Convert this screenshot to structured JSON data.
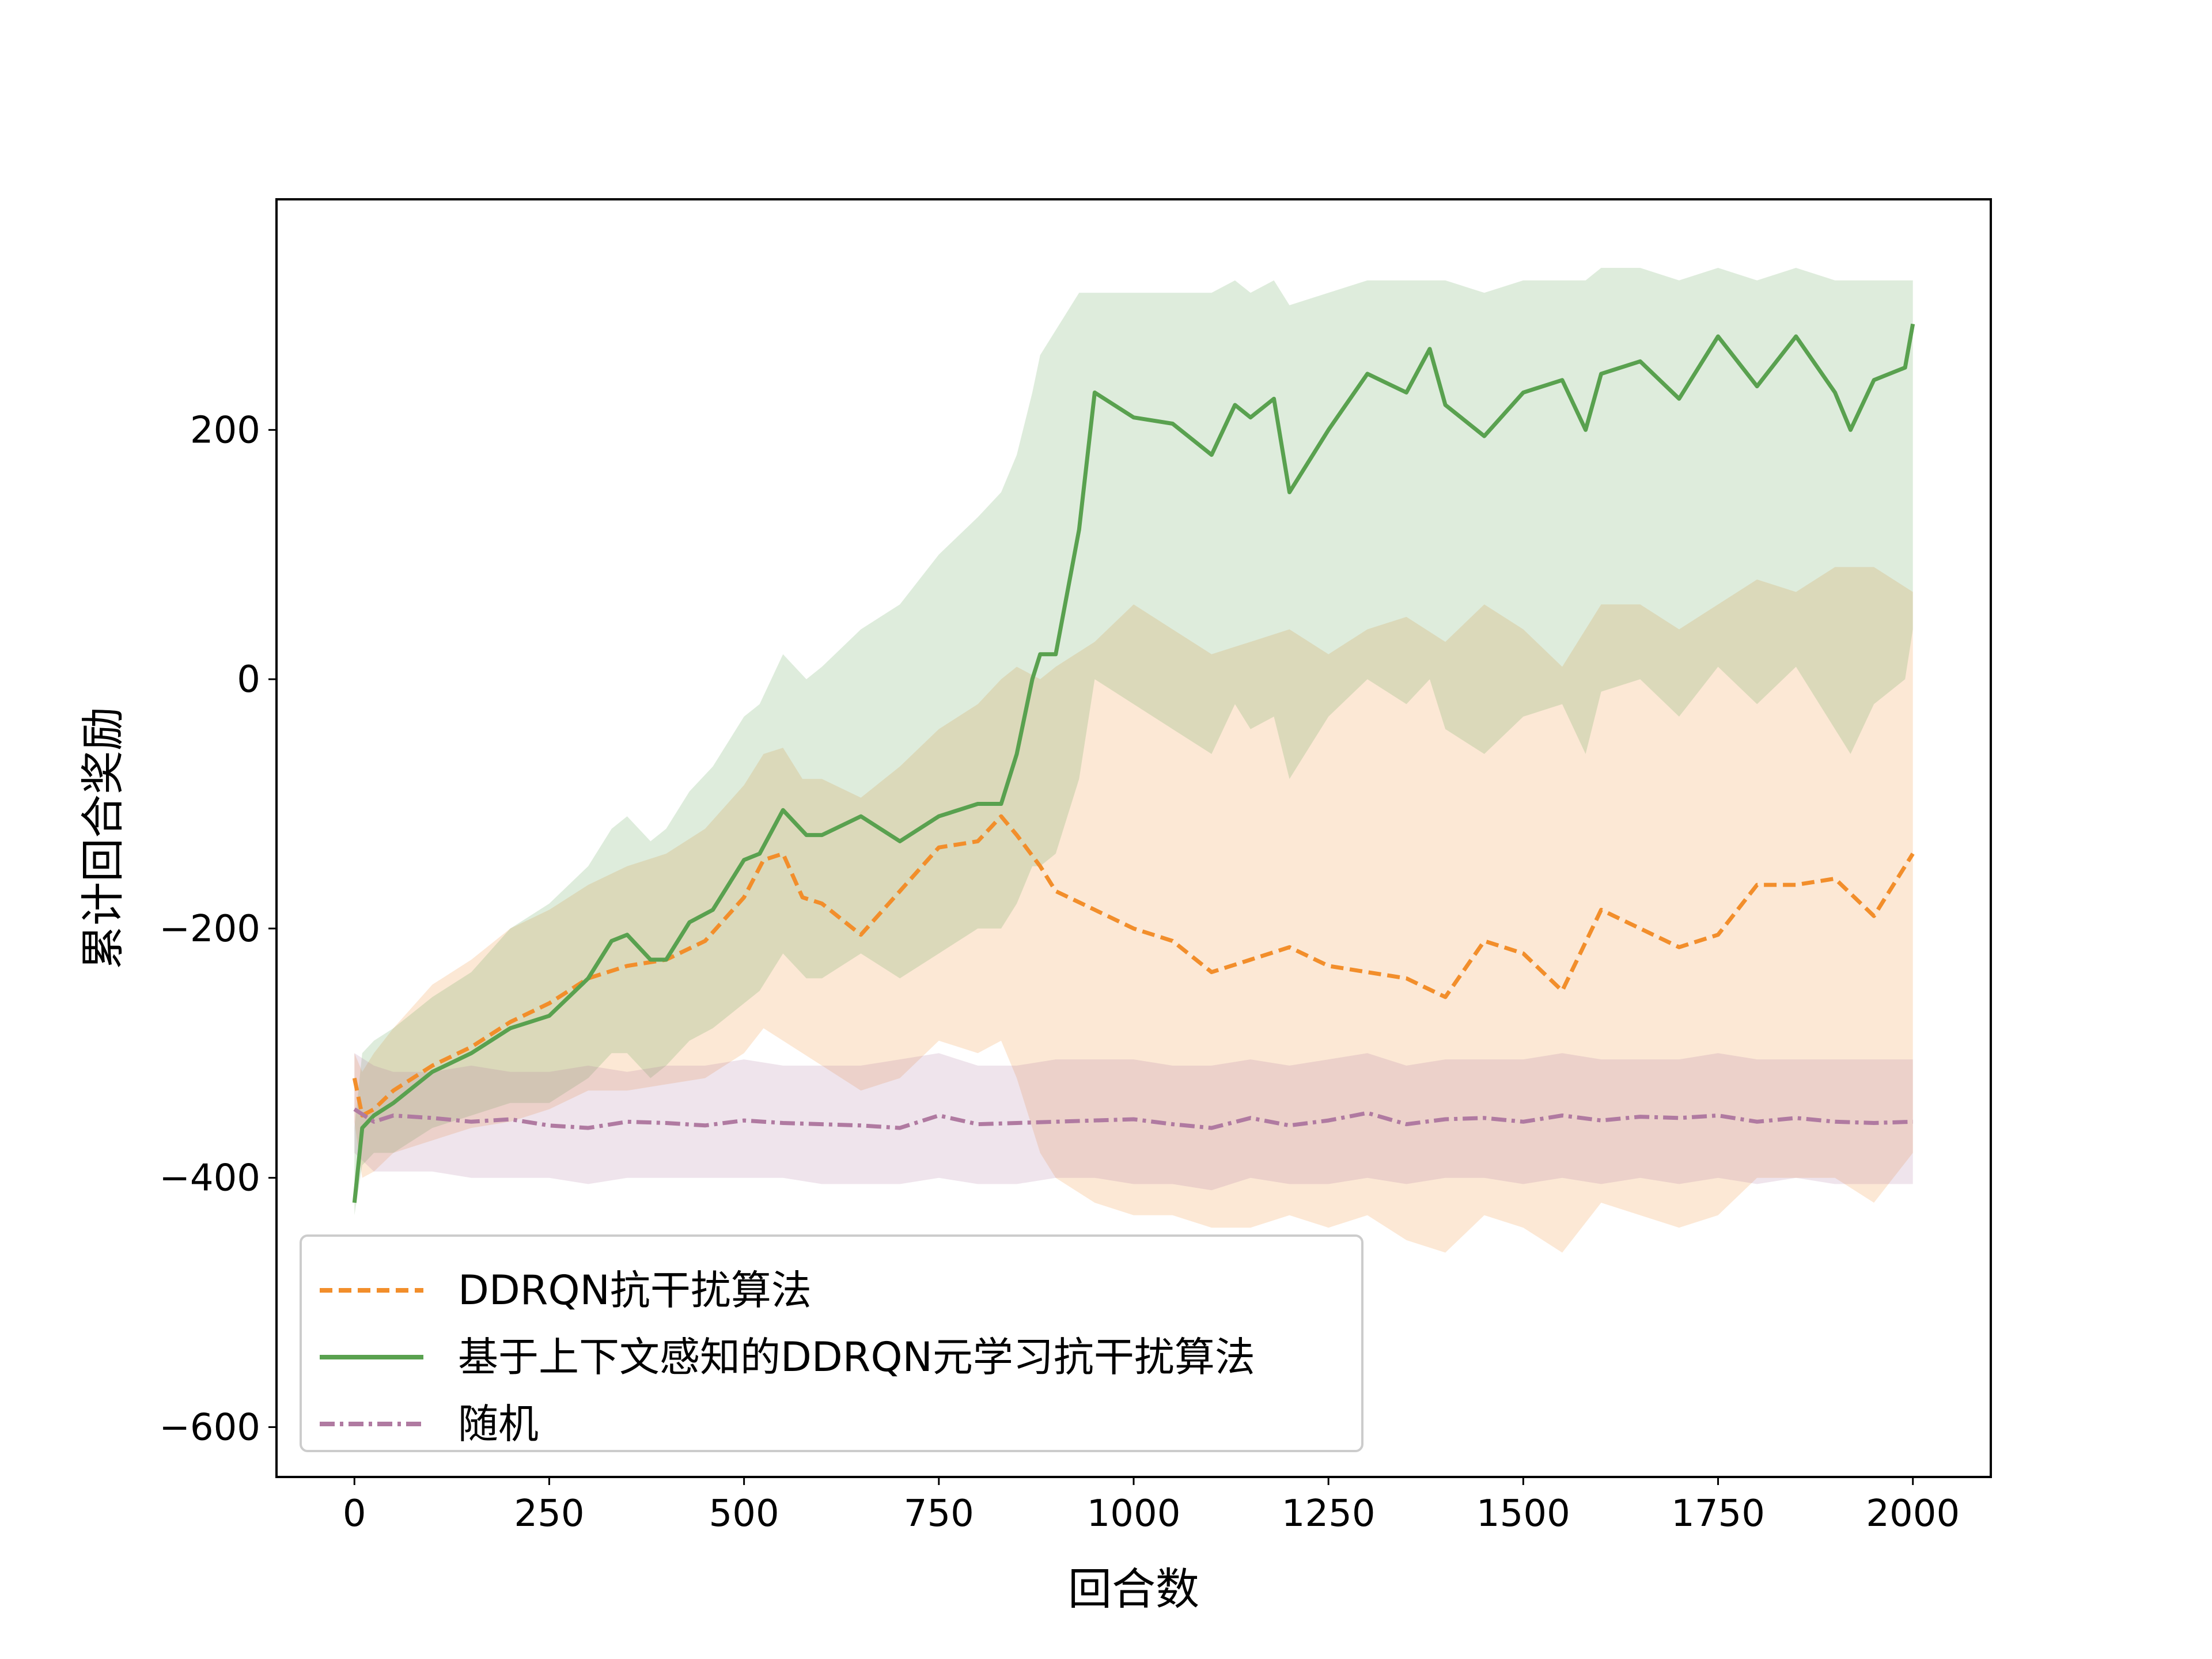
{
  "chart_data": {
    "type": "line",
    "title": "",
    "xlabel": "回合数",
    "ylabel": "累计回合奖励",
    "xlim": [
      -100,
      2100
    ],
    "ylim": [
      -640,
      385
    ],
    "xticks": [
      0,
      250,
      500,
      750,
      1000,
      1250,
      1500,
      1750,
      2000
    ],
    "yticks": [
      -600,
      -400,
      -200,
      0,
      200
    ],
    "grid": false,
    "legend_position": "lower-left",
    "series": [
      {
        "name": "DDRQN抗干扰算法",
        "color": "#f28e2b",
        "line_style": "dashed",
        "x": [
          0,
          10,
          25,
          50,
          100,
          150,
          200,
          250,
          300,
          350,
          400,
          450,
          500,
          525,
          550,
          575,
          600,
          650,
          700,
          750,
          800,
          830,
          850,
          880,
          900,
          950,
          1000,
          1050,
          1100,
          1150,
          1200,
          1250,
          1300,
          1350,
          1400,
          1450,
          1500,
          1550,
          1600,
          1650,
          1700,
          1750,
          1800,
          1850,
          1900,
          1950,
          2000
        ],
        "y": [
          -320,
          -350,
          -345,
          -330,
          -310,
          -295,
          -275,
          -260,
          -240,
          -230,
          -225,
          -210,
          -175,
          -145,
          -140,
          -175,
          -180,
          -205,
          -170,
          -135,
          -130,
          -110,
          -125,
          -150,
          -170,
          -185,
          -200,
          -210,
          -235,
          -225,
          -215,
          -230,
          -235,
          -240,
          -255,
          -210,
          -220,
          -250,
          -185,
          -200,
          -215,
          -205,
          -165,
          -165,
          -160,
          -190,
          -140
        ],
        "band_upper": [
          -300,
          -315,
          -300,
          -280,
          -245,
          -225,
          -200,
          -185,
          -165,
          -150,
          -140,
          -120,
          -85,
          -60,
          -55,
          -80,
          -80,
          -95,
          -70,
          -40,
          -20,
          0,
          10,
          0,
          10,
          30,
          60,
          40,
          20,
          30,
          40,
          20,
          40,
          50,
          30,
          60,
          40,
          10,
          60,
          60,
          40,
          60,
          80,
          70,
          90,
          90,
          70
        ],
        "band_lower": [
          -355,
          -400,
          -395,
          -380,
          -370,
          -360,
          -355,
          -345,
          -330,
          -330,
          -325,
          -320,
          -300,
          -280,
          -290,
          -300,
          -310,
          -330,
          -320,
          -290,
          -300,
          -290,
          -320,
          -380,
          -400,
          -420,
          -430,
          -430,
          -440,
          -440,
          -430,
          -440,
          -430,
          -450,
          -460,
          -430,
          -440,
          -460,
          -420,
          -430,
          -440,
          -430,
          -400,
          -400,
          -400,
          -420,
          -380
        ]
      },
      {
        "name": "基于上下文感知的DDRQN元学习抗干扰算法",
        "color": "#59a14f",
        "line_style": "solid",
        "x": [
          0,
          10,
          25,
          50,
          100,
          150,
          200,
          250,
          300,
          330,
          350,
          380,
          400,
          430,
          460,
          500,
          520,
          550,
          580,
          600,
          650,
          700,
          750,
          800,
          830,
          850,
          870,
          880,
          900,
          930,
          950,
          1000,
          1050,
          1100,
          1130,
          1150,
          1180,
          1200,
          1250,
          1300,
          1350,
          1380,
          1400,
          1450,
          1500,
          1550,
          1580,
          1600,
          1650,
          1700,
          1750,
          1800,
          1850,
          1900,
          1920,
          1950,
          1990,
          2000
        ],
        "y": [
          -420,
          -360,
          -350,
          -340,
          -315,
          -300,
          -280,
          -270,
          -240,
          -210,
          -205,
          -225,
          -225,
          -195,
          -185,
          -145,
          -140,
          -105,
          -125,
          -125,
          -110,
          -130,
          -110,
          -100,
          -100,
          -60,
          0,
          20,
          20,
          120,
          230,
          210,
          205,
          180,
          220,
          210,
          225,
          150,
          200,
          245,
          230,
          265,
          220,
          195,
          230,
          240,
          200,
          245,
          255,
          225,
          275,
          235,
          275,
          230,
          200,
          240,
          250,
          285
        ],
        "band_upper": [
          -360,
          -300,
          -290,
          -280,
          -255,
          -235,
          -200,
          -180,
          -150,
          -120,
          -110,
          -130,
          -120,
          -90,
          -70,
          -30,
          -20,
          20,
          0,
          10,
          40,
          60,
          100,
          130,
          150,
          180,
          230,
          260,
          280,
          310,
          310,
          310,
          310,
          310,
          320,
          310,
          320,
          300,
          310,
          320,
          320,
          320,
          320,
          310,
          320,
          320,
          320,
          330,
          330,
          320,
          330,
          320,
          330,
          320,
          320,
          320,
          320,
          320
        ],
        "band_lower": [
          -430,
          -390,
          -380,
          -380,
          -360,
          -350,
          -340,
          -340,
          -320,
          -300,
          -300,
          -320,
          -310,
          -290,
          -280,
          -260,
          -250,
          -220,
          -240,
          -240,
          -220,
          -240,
          -220,
          -200,
          -200,
          -180,
          -150,
          -150,
          -140,
          -80,
          0,
          -20,
          -40,
          -60,
          -20,
          -40,
          -30,
          -80,
          -30,
          0,
          -20,
          0,
          -40,
          -60,
          -30,
          -20,
          -60,
          -10,
          0,
          -30,
          10,
          -20,
          10,
          -40,
          -60,
          -20,
          0,
          40
        ]
      },
      {
        "name": "随机",
        "color": "#b07aa1",
        "line_style": "dashdot",
        "x": [
          0,
          25,
          50,
          100,
          150,
          200,
          250,
          300,
          350,
          400,
          450,
          500,
          550,
          600,
          650,
          700,
          750,
          800,
          850,
          900,
          950,
          1000,
          1050,
          1100,
          1150,
          1200,
          1250,
          1300,
          1350,
          1400,
          1450,
          1500,
          1550,
          1600,
          1650,
          1700,
          1750,
          1800,
          1850,
          1900,
          1950,
          2000
        ],
        "y": [
          -345,
          -355,
          -350,
          -352,
          -355,
          -353,
          -358,
          -360,
          -355,
          -356,
          -358,
          -354,
          -356,
          -357,
          -358,
          -360,
          -350,
          -357,
          -356,
          -355,
          -354,
          -353,
          -357,
          -360,
          -352,
          -358,
          -354,
          -348,
          -357,
          -353,
          -352,
          -355,
          -350,
          -354,
          -351,
          -352,
          -350,
          -355,
          -352,
          -355,
          -356,
          -355
        ],
        "band_upper": [
          -300,
          -310,
          -315,
          -315,
          -310,
          -315,
          -315,
          -310,
          -315,
          -310,
          -310,
          -305,
          -310,
          -310,
          -310,
          -305,
          -300,
          -310,
          -310,
          -305,
          -305,
          -305,
          -310,
          -310,
          -305,
          -310,
          -305,
          -300,
          -310,
          -305,
          -305,
          -305,
          -300,
          -305,
          -305,
          -305,
          -300,
          -305,
          -305,
          -305,
          -305,
          -305
        ],
        "band_lower": [
          -380,
          -395,
          -395,
          -395,
          -400,
          -400,
          -400,
          -405,
          -400,
          -400,
          -400,
          -400,
          -400,
          -405,
          -405,
          -405,
          -400,
          -405,
          -405,
          -400,
          -400,
          -405,
          -405,
          -410,
          -400,
          -405,
          -405,
          -400,
          -405,
          -400,
          -400,
          -405,
          -400,
          -405,
          -400,
          -405,
          -400,
          -405,
          -400,
          -405,
          -405,
          -405
        ]
      }
    ]
  }
}
